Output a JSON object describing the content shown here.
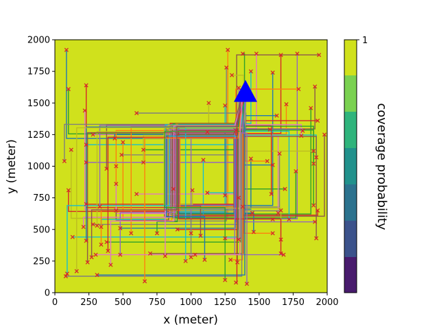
{
  "chart_data": {
    "type": "heatmap",
    "xlabel": "x (meter)",
    "ylabel": "y (meter)",
    "xlim": [
      0,
      2000
    ],
    "ylim": [
      0,
      2000
    ],
    "x_ticks": [
      0,
      250,
      500,
      750,
      1000,
      1250,
      1500,
      1750,
      2000
    ],
    "y_ticks": [
      0,
      250,
      500,
      750,
      1000,
      1250,
      1500,
      1750,
      2000
    ],
    "background_color": "#d0e11c",
    "colorbar": {
      "label": "coverage probability",
      "tick_labels": [
        "1"
      ],
      "colors": [
        "#d0e11c",
        "#7ad151",
        "#5ec962",
        "#2fb47c",
        "#21918c",
        "#2c728e",
        "#3b528b",
        "#472d7b",
        "#481b6d"
      ]
    },
    "base_station": {
      "x": 1400,
      "y": 1590,
      "color": "#0000ff",
      "marker": "triangle"
    },
    "trajectory_colors": [
      "#1f77b4",
      "#ff7f0e",
      "#2ca02c",
      "#d62728",
      "#9467bd",
      "#8c564b",
      "#e377c2",
      "#7f7f7f",
      "#bcbd22",
      "#17becf"
    ],
    "endpoint_marker": {
      "symbol": "x",
      "color": "#d62728"
    },
    "endpoints": [
      [
        85,
        1920
      ],
      [
        1270,
        1920
      ],
      [
        1380,
        1890
      ],
      [
        1660,
        1880
      ],
      [
        1780,
        1890
      ],
      [
        1940,
        1880
      ],
      [
        1480,
        1890
      ],
      [
        1260,
        1780
      ],
      [
        1300,
        1720
      ],
      [
        1440,
        1750
      ],
      [
        1600,
        1740
      ],
      [
        1790,
        1610
      ],
      [
        100,
        1610
      ],
      [
        230,
        1640
      ],
      [
        1350,
        1620
      ],
      [
        1910,
        1630
      ],
      [
        220,
        1440
      ],
      [
        600,
        1420
      ],
      [
        1130,
        1500
      ],
      [
        1250,
        1480
      ],
      [
        1630,
        1400
      ],
      [
        1700,
        1490
      ],
      [
        1880,
        1460
      ],
      [
        1930,
        1360
      ],
      [
        1820,
        1280
      ],
      [
        1980,
        1250
      ],
      [
        280,
        1250
      ],
      [
        70,
        1040
      ],
      [
        120,
        1130
      ],
      [
        230,
        1170
      ],
      [
        440,
        1220
      ],
      [
        500,
        1190
      ],
      [
        650,
        1130
      ],
      [
        1120,
        1270
      ],
      [
        1330,
        1280
      ],
      [
        1580,
        1290
      ],
      [
        1810,
        1240
      ],
      [
        1650,
        1100
      ],
      [
        1900,
        1120
      ],
      [
        1920,
        1070
      ],
      [
        1440,
        1060
      ],
      [
        1560,
        1040
      ],
      [
        1900,
        1020
      ],
      [
        100,
        810
      ],
      [
        230,
        1030
      ],
      [
        380,
        980
      ],
      [
        450,
        1000
      ],
      [
        490,
        1090
      ],
      [
        650,
        1030
      ],
      [
        1090,
        1050
      ],
      [
        1600,
        1010
      ],
      [
        450,
        860
      ],
      [
        1770,
        960
      ],
      [
        230,
        700
      ],
      [
        330,
        680
      ],
      [
        450,
        650
      ],
      [
        600,
        780
      ],
      [
        870,
        820
      ],
      [
        1010,
        810
      ],
      [
        1120,
        790
      ],
      [
        1250,
        770
      ],
      [
        1350,
        750
      ],
      [
        1690,
        820
      ],
      [
        1590,
        780
      ],
      [
        1380,
        680
      ],
      [
        1450,
        630
      ],
      [
        1640,
        630
      ],
      [
        1660,
        650
      ],
      [
        1600,
        580
      ],
      [
        1720,
        580
      ],
      [
        1460,
        480
      ],
      [
        1600,
        470
      ],
      [
        1900,
        690
      ],
      [
        1930,
        650
      ],
      [
        1910,
        560
      ],
      [
        1920,
        430
      ],
      [
        210,
        520
      ],
      [
        280,
        540
      ],
      [
        310,
        530
      ],
      [
        340,
        520
      ],
      [
        480,
        510
      ],
      [
        560,
        470
      ],
      [
        750,
        470
      ],
      [
        900,
        500
      ],
      [
        1000,
        470
      ],
      [
        1070,
        450
      ],
      [
        1250,
        430
      ],
      [
        1350,
        420
      ],
      [
        1660,
        420
      ],
      [
        130,
        440
      ],
      [
        230,
        410
      ],
      [
        340,
        380
      ],
      [
        380,
        400
      ],
      [
        390,
        330
      ],
      [
        480,
        300
      ],
      [
        700,
        310
      ],
      [
        810,
        290
      ],
      [
        1000,
        280
      ],
      [
        1030,
        300
      ],
      [
        960,
        250
      ],
      [
        1100,
        260
      ],
      [
        1290,
        260
      ],
      [
        1340,
        240
      ],
      [
        1660,
        310
      ],
      [
        1680,
        300
      ],
      [
        240,
        240
      ],
      [
        410,
        220
      ],
      [
        80,
        130
      ],
      [
        160,
        170
      ],
      [
        90,
        150
      ],
      [
        310,
        140
      ],
      [
        660,
        90
      ],
      [
        1250,
        100
      ],
      [
        1330,
        80
      ],
      [
        1410,
        70
      ],
      [
        270,
        280
      ],
      [
        300,
        300
      ]
    ]
  }
}
